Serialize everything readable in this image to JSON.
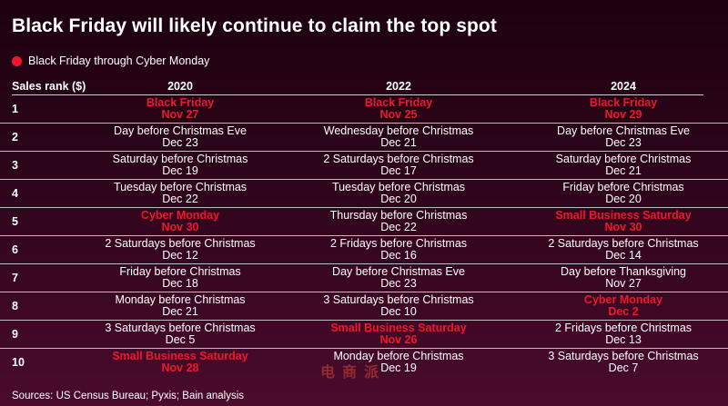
{
  "title": "Black Friday will likely continue to claim the top spot",
  "legend": {
    "label": "Black Friday through Cyber Monday",
    "color": "#f0162d"
  },
  "header": {
    "rank_label": "Sales rank ($)",
    "years": [
      "2020",
      "2022",
      "2024"
    ]
  },
  "rows": [
    {
      "rank": "1",
      "cells": [
        {
          "event": "Black Friday",
          "date": "Nov 27",
          "highlight": true
        },
        {
          "event": "Black Friday",
          "date": "Nov 25",
          "highlight": true
        },
        {
          "event": "Black Friday",
          "date": "Nov 29",
          "highlight": true
        }
      ]
    },
    {
      "rank": "2",
      "cells": [
        {
          "event": "Day before Christmas Eve",
          "date": "Dec 23",
          "highlight": false
        },
        {
          "event": "Wednesday before Christmas",
          "date": "Dec 21",
          "highlight": false
        },
        {
          "event": "Day before Christmas Eve",
          "date": "Dec 23",
          "highlight": false
        }
      ]
    },
    {
      "rank": "3",
      "cells": [
        {
          "event": "Saturday before Christmas",
          "date": "Dec 19",
          "highlight": false
        },
        {
          "event": "2 Saturdays before Christmas",
          "date": "Dec 17",
          "highlight": false
        },
        {
          "event": "Saturday before Christmas",
          "date": "Dec 21",
          "highlight": false
        }
      ]
    },
    {
      "rank": "4",
      "cells": [
        {
          "event": "Tuesday before Christmas",
          "date": "Dec 22",
          "highlight": false
        },
        {
          "event": "Tuesday before Christmas",
          "date": "Dec 20",
          "highlight": false
        },
        {
          "event": "Friday before Christmas",
          "date": "Dec 20",
          "highlight": false
        }
      ]
    },
    {
      "rank": "5",
      "cells": [
        {
          "event": "Cyber Monday",
          "date": "Nov 30",
          "highlight": true
        },
        {
          "event": "Thursday before Christmas",
          "date": "Dec 22",
          "highlight": false
        },
        {
          "event": "Small Business Saturday",
          "date": "Nov 30",
          "highlight": true
        }
      ]
    },
    {
      "rank": "6",
      "cells": [
        {
          "event": "2 Saturdays before Christmas",
          "date": "Dec 12",
          "highlight": false
        },
        {
          "event": "2 Fridays before Christmas",
          "date": "Dec 16",
          "highlight": false
        },
        {
          "event": "2 Saturdays before Christmas",
          "date": "Dec 14",
          "highlight": false
        }
      ]
    },
    {
      "rank": "7",
      "cells": [
        {
          "event": "Friday before Christmas",
          "date": "Dec 18",
          "highlight": false
        },
        {
          "event": "Day before Christmas Eve",
          "date": "Dec 23",
          "highlight": false
        },
        {
          "event": "Day before Thanksgiving",
          "date": "Nov 27",
          "highlight": false
        }
      ]
    },
    {
      "rank": "8",
      "cells": [
        {
          "event": "Monday before Christmas",
          "date": "Dec 21",
          "highlight": false
        },
        {
          "event": "3 Saturdays before Christmas",
          "date": "Dec 10",
          "highlight": false
        },
        {
          "event": "Cyber Monday",
          "date": "Dec 2",
          "highlight": true
        }
      ]
    },
    {
      "rank": "9",
      "cells": [
        {
          "event": "3 Saturdays before Christmas",
          "date": "Dec 5",
          "highlight": false
        },
        {
          "event": "Small Business Saturday",
          "date": "Nov 26",
          "highlight": true
        },
        {
          "event": "2 Fridays before Christmas",
          "date": "Dec 13",
          "highlight": false
        }
      ]
    },
    {
      "rank": "10",
      "cells": [
        {
          "event": "Small Business Saturday",
          "date": "Nov 28",
          "highlight": true
        },
        {
          "event": "Monday before Christmas",
          "date": "Dec 19",
          "highlight": false
        },
        {
          "event": "3 Saturdays before Christmas",
          "date": "Dec 7",
          "highlight": false
        }
      ]
    }
  ],
  "source": "Sources: US Census Bureau; Pyxis; Bain analysis",
  "watermark": [
    "电",
    "商",
    "派"
  ],
  "chart_data": {
    "type": "table",
    "title": "Black Friday will likely continue to claim the top spot",
    "legend": [
      "Black Friday through Cyber Monday"
    ],
    "row_header": "Sales rank ($)",
    "columns": [
      "2020",
      "2022",
      "2024"
    ],
    "rows": [
      [
        "Black Friday Nov 27",
        "Black Friday Nov 25",
        "Black Friday Nov 29"
      ],
      [
        "Day before Christmas Eve Dec 23",
        "Wednesday before Christmas Dec 21",
        "Day before Christmas Eve Dec 23"
      ],
      [
        "Saturday before Christmas Dec 19",
        "2 Saturdays before Christmas Dec 17",
        "Saturday before Christmas Dec 21"
      ],
      [
        "Tuesday before Christmas Dec 22",
        "Tuesday before Christmas Dec 20",
        "Friday before Christmas Dec 20"
      ],
      [
        "Cyber Monday Nov 30",
        "Thursday before Christmas Dec 22",
        "Small Business Saturday Nov 30"
      ],
      [
        "2 Saturdays before Christmas Dec 12",
        "2 Fridays before Christmas Dec 16",
        "2 Saturdays before Christmas Dec 14"
      ],
      [
        "Friday before Christmas Dec 18",
        "Day before Christmas Eve Dec 23",
        "Day before Thanksgiving Nov 27"
      ],
      [
        "Monday before Christmas Dec 21",
        "3 Saturdays before Christmas Dec 10",
        "Cyber Monday Dec 2"
      ],
      [
        "3 Saturdays before Christmas Dec 5",
        "Small Business Saturday Nov 26",
        "2 Fridays before Christmas Dec 13"
      ],
      [
        "Small Business Saturday Nov 28",
        "Monday before Christmas Dec 19",
        "3 Saturdays before Christmas Dec 7"
      ]
    ],
    "source": "Sources: US Census Bureau; Pyxis; Bain analysis"
  }
}
